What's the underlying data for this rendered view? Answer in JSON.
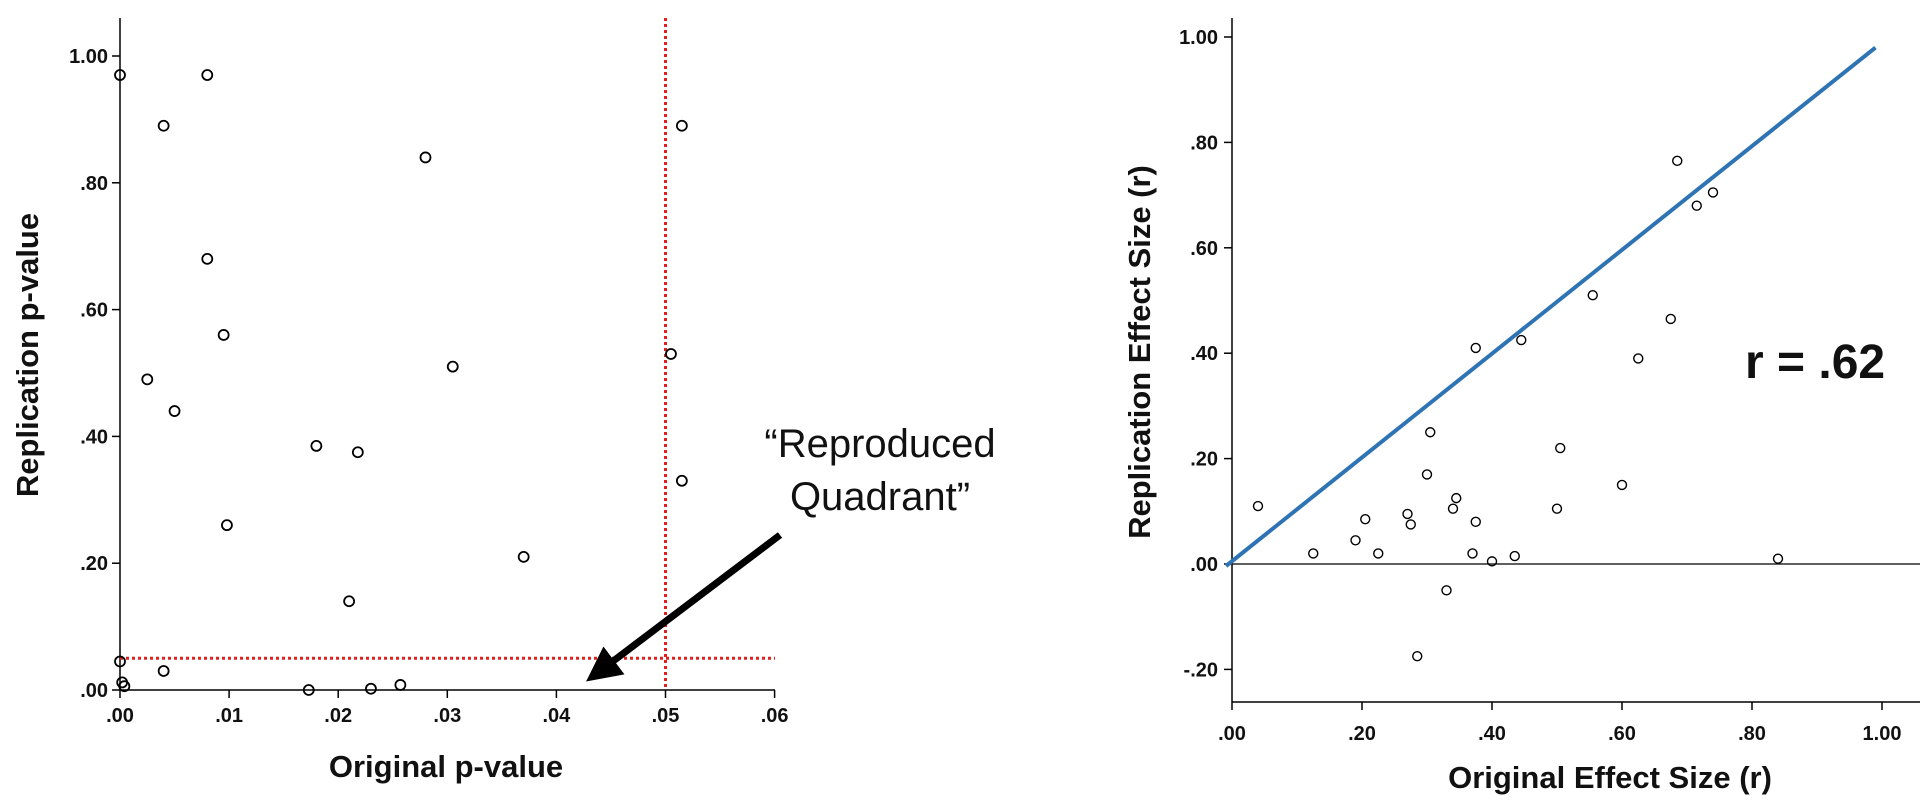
{
  "chart_data": [
    {
      "type": "scatter",
      "title": "",
      "xlabel": "Original p-value",
      "ylabel": "Replication p-value",
      "xlim": [
        0,
        0.06
      ],
      "ylim": [
        0,
        1.0
      ],
      "x_tick_labels": [
        ".00",
        ".01",
        ".02",
        ".03",
        ".04",
        ".05",
        ".06"
      ],
      "y_tick_labels": [
        ".00",
        ".20",
        ".40",
        ".60",
        ".80",
        "1.00"
      ],
      "reference_lines": {
        "x": 0.05,
        "y": 0.05,
        "color": "#e02020",
        "style": "dotted"
      },
      "annotation": {
        "lines": [
          "“Reproduced",
          "Quadrant”"
        ],
        "arrow_to": [
          0.044,
          0.03
        ]
      },
      "grid": false,
      "points": [
        {
          "x": 0.0,
          "y": 0.97
        },
        {
          "x": 0.008,
          "y": 0.97
        },
        {
          "x": 0.004,
          "y": 0.89
        },
        {
          "x": 0.028,
          "y": 0.84
        },
        {
          "x": 0.0515,
          "y": 0.89
        },
        {
          "x": 0.008,
          "y": 0.68
        },
        {
          "x": 0.0095,
          "y": 0.56
        },
        {
          "x": 0.0025,
          "y": 0.49
        },
        {
          "x": 0.0305,
          "y": 0.51
        },
        {
          "x": 0.0505,
          "y": 0.53
        },
        {
          "x": 0.005,
          "y": 0.44
        },
        {
          "x": 0.018,
          "y": 0.385
        },
        {
          "x": 0.0218,
          "y": 0.375
        },
        {
          "x": 0.0515,
          "y": 0.33
        },
        {
          "x": 0.0098,
          "y": 0.26
        },
        {
          "x": 0.037,
          "y": 0.21
        },
        {
          "x": 0.021,
          "y": 0.14
        },
        {
          "x": 0.0,
          "y": 0.045
        },
        {
          "x": 0.004,
          "y": 0.03
        },
        {
          "x": 0.0002,
          "y": 0.012
        },
        {
          "x": 0.0004,
          "y": 0.006
        },
        {
          "x": 0.0173,
          "y": 0.0
        },
        {
          "x": 0.023,
          "y": 0.002
        },
        {
          "x": 0.0257,
          "y": 0.008
        }
      ]
    },
    {
      "type": "scatter",
      "title": "",
      "xlabel": "Original Effect Size (r)",
      "ylabel": "Replication Effect Size (r)",
      "xlim": [
        0,
        1.05
      ],
      "ylim": [
        -0.25,
        1.05
      ],
      "x_tick_labels": [
        ".00",
        ".20",
        ".40",
        ".60",
        ".80",
        "1.00"
      ],
      "y_tick_labels": [
        "-.20",
        ".00",
        ".20",
        ".40",
        ".60",
        ".80",
        "1.00"
      ],
      "zero_line": 0,
      "diagonal_line": {
        "from": [
          0,
          0
        ],
        "to": [
          0.99,
          0.98
        ],
        "color": "#2e74b5"
      },
      "annotation": "r = .62",
      "grid": false,
      "points": [
        {
          "x": 0.04,
          "y": 0.11
        },
        {
          "x": 0.125,
          "y": 0.02
        },
        {
          "x": 0.19,
          "y": 0.045
        },
        {
          "x": 0.205,
          "y": 0.085
        },
        {
          "x": 0.225,
          "y": 0.02
        },
        {
          "x": 0.27,
          "y": 0.095
        },
        {
          "x": 0.275,
          "y": 0.075
        },
        {
          "x": 0.285,
          "y": -0.175
        },
        {
          "x": 0.3,
          "y": 0.17
        },
        {
          "x": 0.305,
          "y": 0.25
        },
        {
          "x": 0.33,
          "y": -0.05
        },
        {
          "x": 0.34,
          "y": 0.105
        },
        {
          "x": 0.345,
          "y": 0.125
        },
        {
          "x": 0.37,
          "y": 0.02
        },
        {
          "x": 0.375,
          "y": 0.08
        },
        {
          "x": 0.375,
          "y": 0.41
        },
        {
          "x": 0.4,
          "y": 0.005
        },
        {
          "x": 0.435,
          "y": 0.015
        },
        {
          "x": 0.445,
          "y": 0.425
        },
        {
          "x": 0.5,
          "y": 0.105
        },
        {
          "x": 0.505,
          "y": 0.22
        },
        {
          "x": 0.555,
          "y": 0.51
        },
        {
          "x": 0.6,
          "y": 0.15
        },
        {
          "x": 0.625,
          "y": 0.39
        },
        {
          "x": 0.675,
          "y": 0.465
        },
        {
          "x": 0.685,
          "y": 0.765
        },
        {
          "x": 0.715,
          "y": 0.68
        },
        {
          "x": 0.74,
          "y": 0.705
        },
        {
          "x": 0.84,
          "y": 0.01
        }
      ]
    }
  ]
}
